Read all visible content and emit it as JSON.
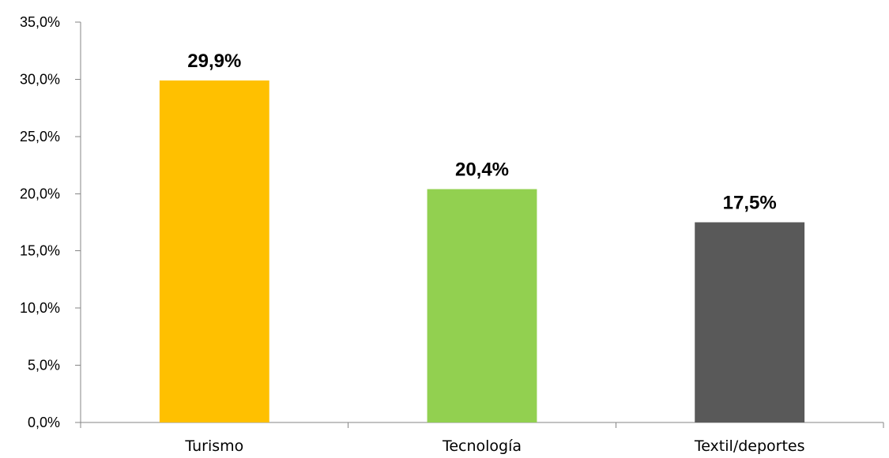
{
  "chart_data": {
    "type": "bar",
    "title": "",
    "xlabel": "",
    "ylabel": "",
    "categories": [
      "Turismo",
      "Tecnología",
      "Textil/deportes"
    ],
    "values": [
      29.9,
      20.4,
      17.5
    ],
    "data_labels": [
      "29,9%",
      "20,4%",
      "17,5%"
    ],
    "colors": [
      "#FFC000",
      "#92D050",
      "#595959"
    ],
    "ylim": [
      0,
      35
    ],
    "yticks": [
      0,
      5,
      10,
      15,
      20,
      25,
      30,
      35
    ],
    "ytick_labels": [
      "0,0%",
      "5,0%",
      "10,0%",
      "15,0%",
      "20,0%",
      "25,0%",
      "30,0%",
      "35,0%"
    ],
    "grid": false,
    "legend": "none"
  }
}
